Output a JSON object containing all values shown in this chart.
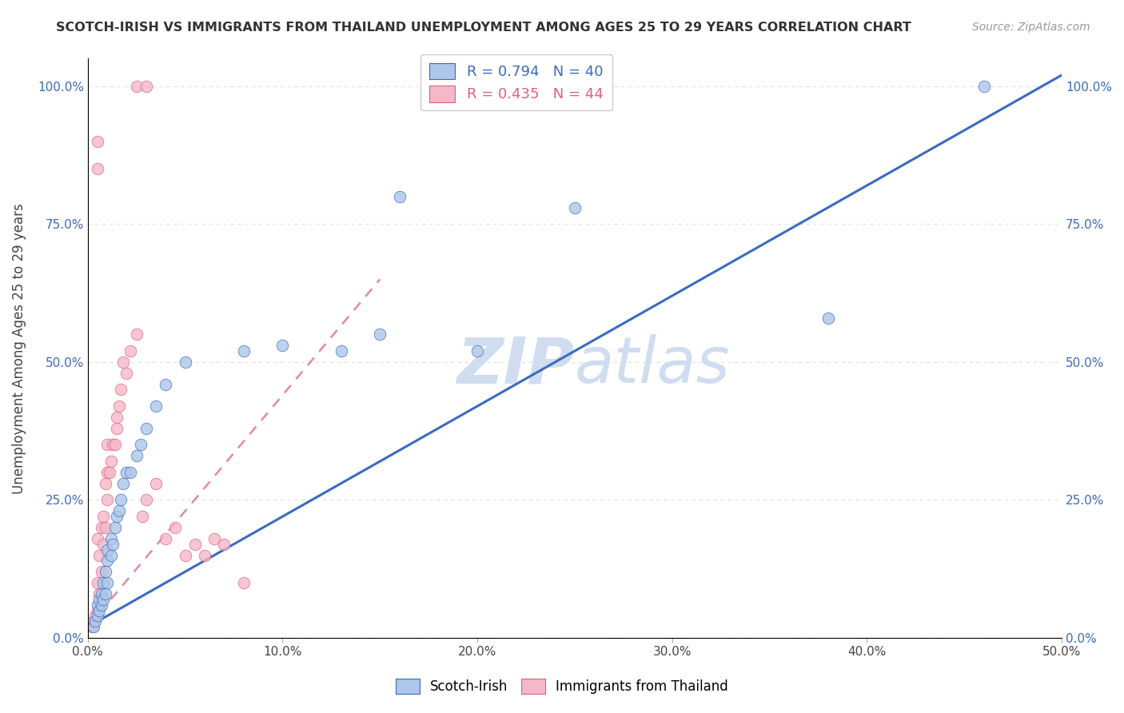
{
  "title": "SCOTCH-IRISH VS IMMIGRANTS FROM THAILAND UNEMPLOYMENT AMONG AGES 25 TO 29 YEARS CORRELATION CHART",
  "source": "Source: ZipAtlas.com",
  "ylabel": "Unemployment Among Ages 25 to 29 years",
  "xlim": [
    0,
    0.5
  ],
  "ylim": [
    0,
    1.05
  ],
  "blue_R": 0.794,
  "blue_N": 40,
  "pink_R": 0.435,
  "pink_N": 44,
  "blue_color": "#aec6e8",
  "pink_color": "#f5b8c8",
  "blue_line_color": "#3a6bbf",
  "pink_line_color": "#e06080",
  "grid_color": "#d8dde8",
  "watermark_color": "#d0ddf0",
  "background_color": "#ffffff",
  "blue_scatter_x": [
    0.003,
    0.004,
    0.005,
    0.005,
    0.006,
    0.006,
    0.007,
    0.007,
    0.008,
    0.008,
    0.009,
    0.009,
    0.01,
    0.01,
    0.01,
    0.012,
    0.012,
    0.013,
    0.014,
    0.015,
    0.016,
    0.017,
    0.018,
    0.02,
    0.022,
    0.025,
    0.027,
    0.03,
    0.035,
    0.04,
    0.05,
    0.08,
    0.1,
    0.13,
    0.15,
    0.16,
    0.2,
    0.25,
    0.38,
    0.46
  ],
  "blue_scatter_y": [
    0.02,
    0.03,
    0.04,
    0.06,
    0.05,
    0.07,
    0.06,
    0.08,
    0.07,
    0.1,
    0.08,
    0.12,
    0.1,
    0.14,
    0.16,
    0.15,
    0.18,
    0.17,
    0.2,
    0.22,
    0.23,
    0.25,
    0.28,
    0.3,
    0.3,
    0.33,
    0.35,
    0.38,
    0.42,
    0.46,
    0.5,
    0.52,
    0.53,
    0.52,
    0.55,
    0.8,
    0.52,
    0.78,
    0.58,
    1.0
  ],
  "pink_scatter_x": [
    0.002,
    0.003,
    0.004,
    0.005,
    0.005,
    0.005,
    0.006,
    0.006,
    0.007,
    0.007,
    0.008,
    0.008,
    0.009,
    0.009,
    0.01,
    0.01,
    0.01,
    0.011,
    0.012,
    0.013,
    0.014,
    0.015,
    0.015,
    0.016,
    0.017,
    0.018,
    0.02,
    0.022,
    0.025,
    0.028,
    0.03,
    0.035,
    0.04,
    0.045,
    0.05,
    0.055,
    0.06,
    0.065,
    0.07,
    0.08,
    0.025,
    0.03,
    0.005,
    0.005
  ],
  "pink_scatter_y": [
    0.02,
    0.03,
    0.04,
    0.05,
    0.1,
    0.18,
    0.08,
    0.15,
    0.12,
    0.2,
    0.17,
    0.22,
    0.2,
    0.28,
    0.25,
    0.3,
    0.35,
    0.3,
    0.32,
    0.35,
    0.35,
    0.38,
    0.4,
    0.42,
    0.45,
    0.5,
    0.48,
    0.52,
    0.55,
    0.22,
    0.25,
    0.28,
    0.18,
    0.2,
    0.15,
    0.17,
    0.15,
    0.18,
    0.17,
    0.1,
    1.0,
    1.0,
    0.85,
    0.9
  ]
}
